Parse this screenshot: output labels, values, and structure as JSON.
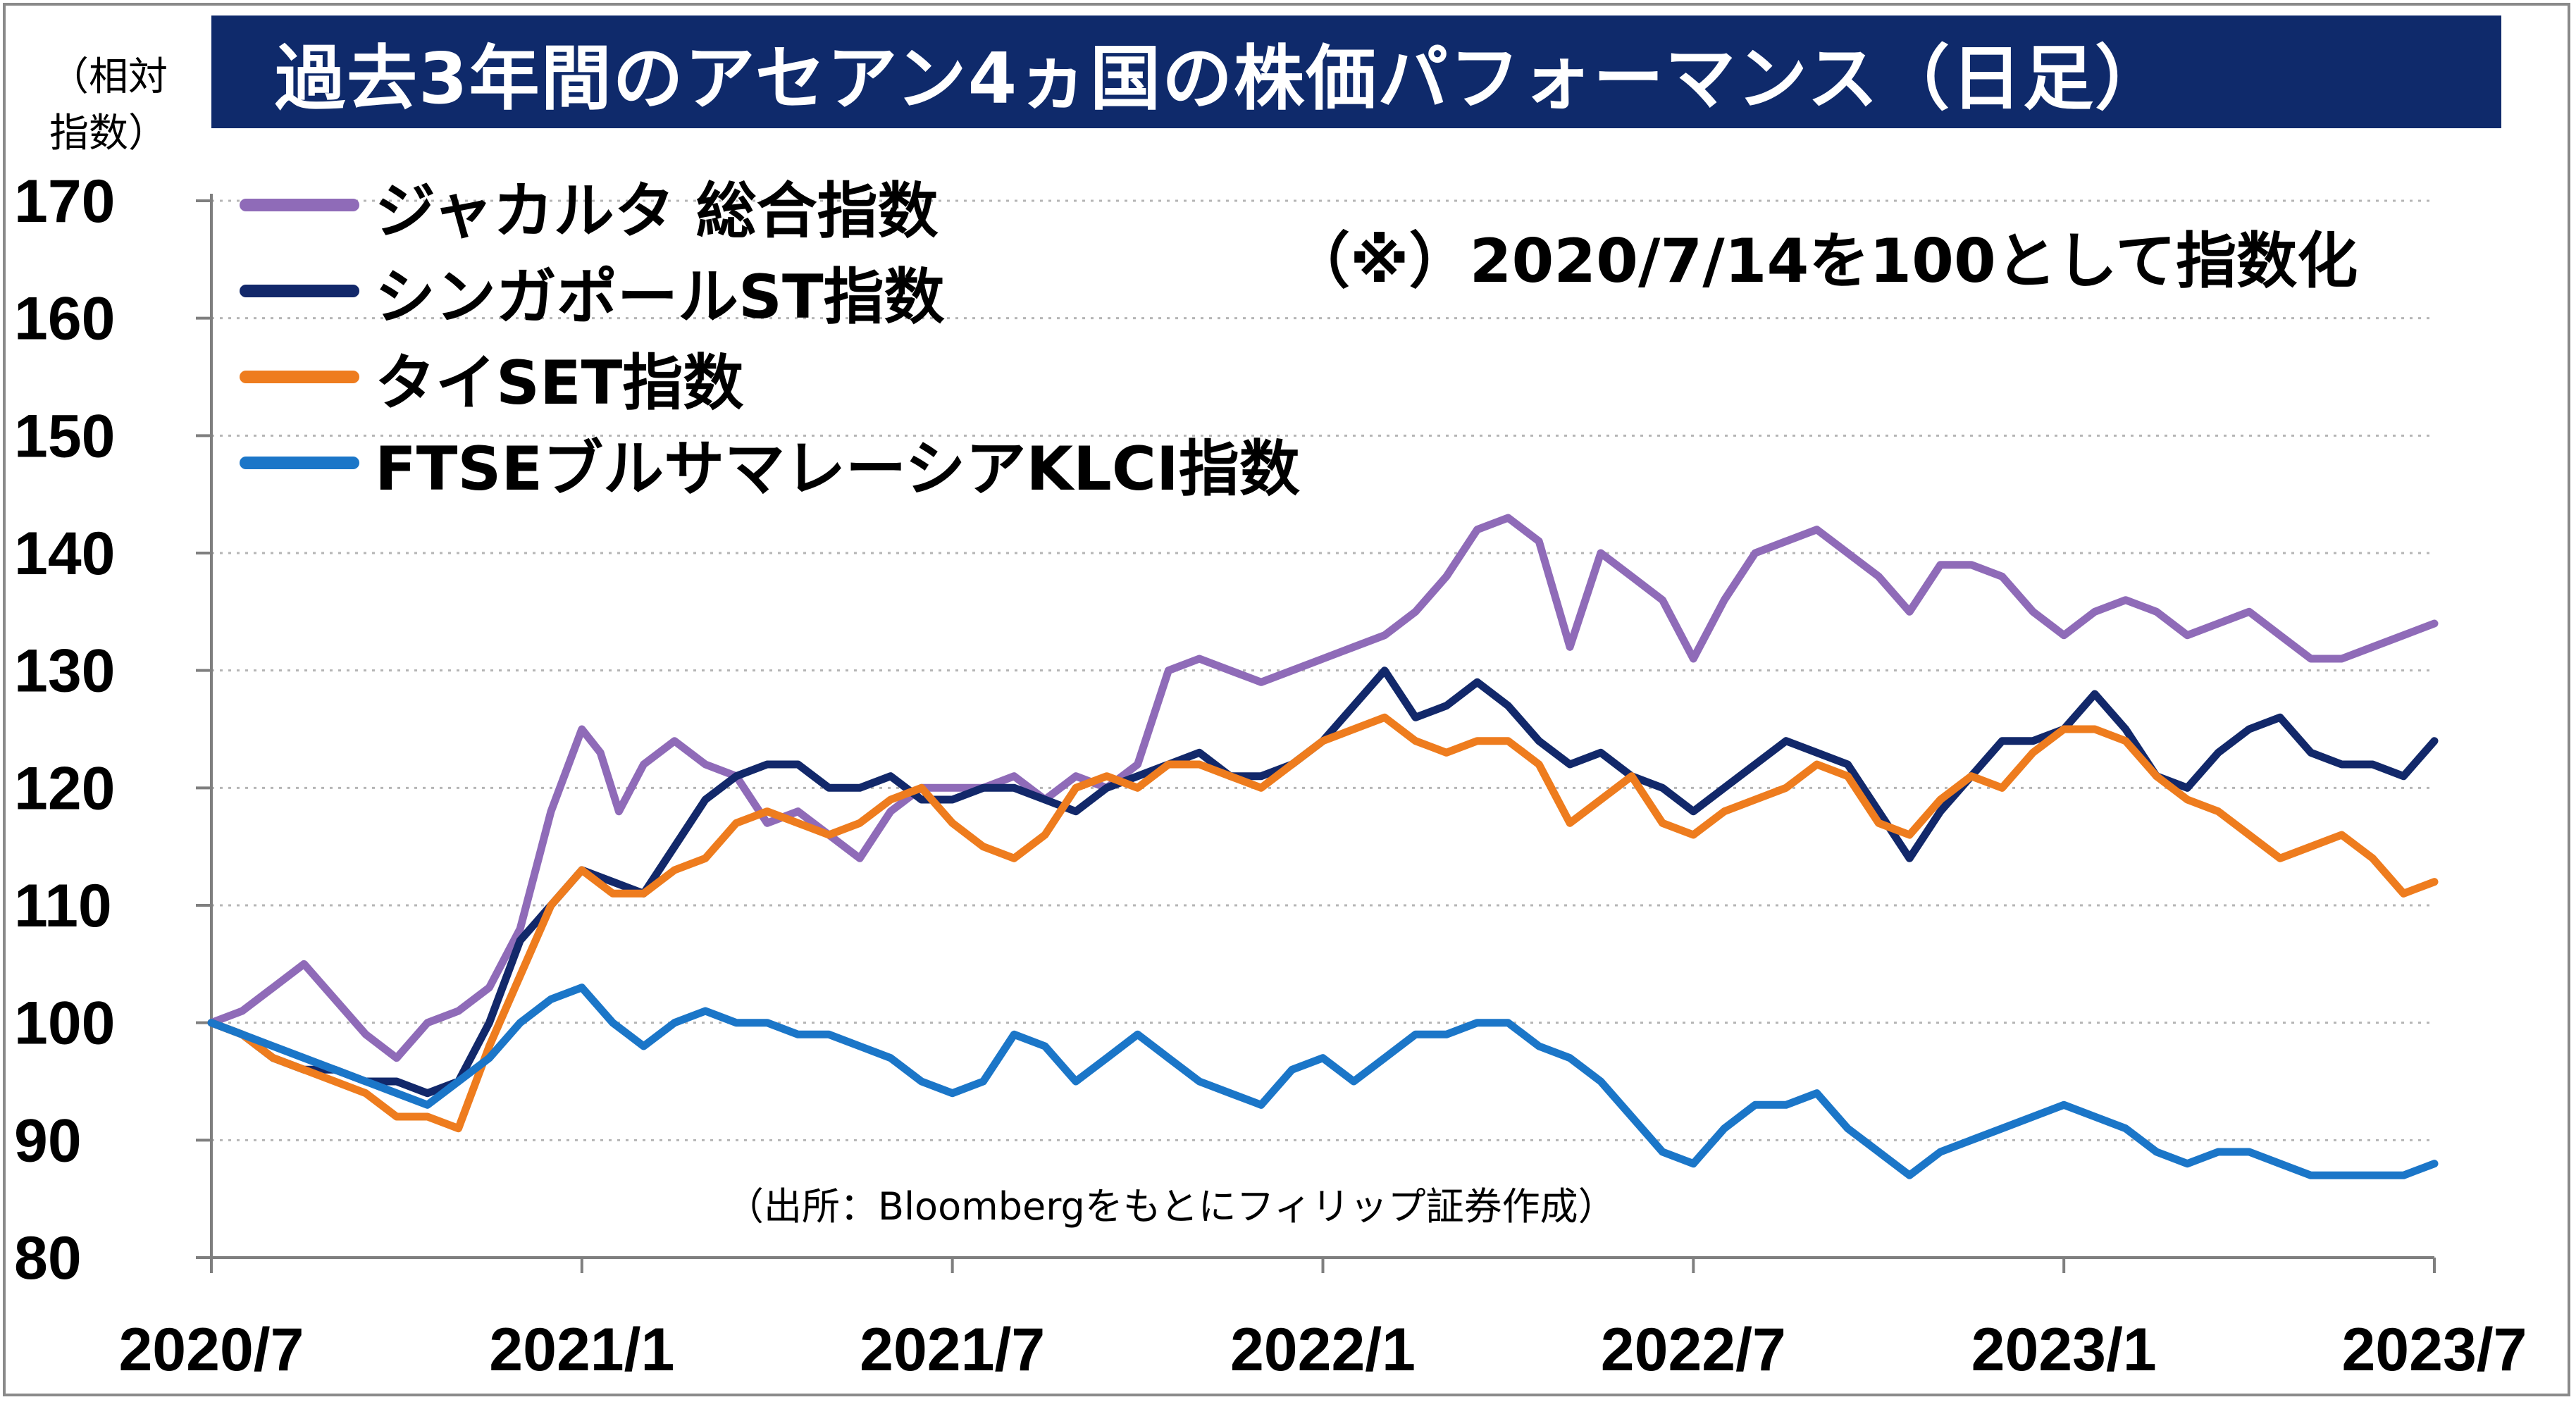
{
  "chart_data": {
    "type": "line",
    "title": "過去3年間のアセアン4ヵ国の株価パフォーマンス（日足）",
    "ylabel": "（相対\n指数）",
    "ylabel_lines": [
      "（相対",
      "指数）"
    ],
    "note": "（※）2020/7/14を100として指数化",
    "source": "（出所：Bloombergをもとにフィリップ証券作成）",
    "ylim": [
      80,
      170
    ],
    "yticks": [
      80,
      90,
      100,
      110,
      120,
      130,
      140,
      150,
      160,
      170
    ],
    "x_tick_labels": [
      "2020/7",
      "2021/1",
      "2021/7",
      "2022/1",
      "2022/7",
      "2023/1",
      "2023/7"
    ],
    "x_tick_months": [
      0,
      6,
      12,
      18,
      24,
      30,
      36
    ],
    "grid": true,
    "legend_position": "top-left",
    "x_unit": "months since 2020/7",
    "series": [
      {
        "name": "ジャカルタ 総合指数",
        "color": "#8f6bb8",
        "points": [
          [
            0,
            100
          ],
          [
            0.5,
            101
          ],
          [
            1,
            103
          ],
          [
            1.5,
            105
          ],
          [
            2,
            102
          ],
          [
            2.5,
            99
          ],
          [
            3,
            97
          ],
          [
            3.5,
            100
          ],
          [
            4,
            101
          ],
          [
            4.5,
            103
          ],
          [
            5,
            108
          ],
          [
            5.5,
            118
          ],
          [
            6,
            125
          ],
          [
            6.3,
            123
          ],
          [
            6.6,
            118
          ],
          [
            7,
            122
          ],
          [
            7.5,
            124
          ],
          [
            8,
            122
          ],
          [
            8.5,
            121
          ],
          [
            9,
            117
          ],
          [
            9.5,
            118
          ],
          [
            10,
            116
          ],
          [
            10.5,
            114
          ],
          [
            11,
            118
          ],
          [
            11.5,
            120
          ],
          [
            12,
            120
          ],
          [
            12.5,
            120
          ],
          [
            13,
            121
          ],
          [
            13.5,
            119
          ],
          [
            14,
            121
          ],
          [
            14.5,
            120
          ],
          [
            15,
            122
          ],
          [
            15.5,
            130
          ],
          [
            16,
            131
          ],
          [
            16.5,
            130
          ],
          [
            17,
            129
          ],
          [
            17.5,
            130
          ],
          [
            18,
            131
          ],
          [
            18.5,
            132
          ],
          [
            19,
            133
          ],
          [
            19.5,
            135
          ],
          [
            20,
            138
          ],
          [
            20.5,
            142
          ],
          [
            21,
            143
          ],
          [
            21.5,
            141
          ],
          [
            22,
            132
          ],
          [
            22.5,
            140
          ],
          [
            23,
            138
          ],
          [
            23.5,
            136
          ],
          [
            24,
            131
          ],
          [
            24.5,
            136
          ],
          [
            25,
            140
          ],
          [
            25.5,
            141
          ],
          [
            26,
            142
          ],
          [
            26.5,
            140
          ],
          [
            27,
            138
          ],
          [
            27.5,
            135
          ],
          [
            28,
            139
          ],
          [
            28.5,
            139
          ],
          [
            29,
            138
          ],
          [
            29.5,
            135
          ],
          [
            30,
            133
          ],
          [
            30.5,
            135
          ],
          [
            31,
            136
          ],
          [
            31.5,
            135
          ],
          [
            32,
            133
          ],
          [
            32.5,
            134
          ],
          [
            33,
            135
          ],
          [
            33.5,
            133
          ],
          [
            34,
            131
          ],
          [
            34.5,
            131
          ],
          [
            35,
            132
          ],
          [
            35.5,
            133
          ],
          [
            36,
            134
          ]
        ]
      },
      {
        "name": "シンガポールST指数",
        "color": "#12286a",
        "points": [
          [
            0,
            100
          ],
          [
            0.5,
            99
          ],
          [
            1,
            97
          ],
          [
            1.5,
            96
          ],
          [
            2,
            96
          ],
          [
            2.5,
            95
          ],
          [
            3,
            95
          ],
          [
            3.5,
            94
          ],
          [
            4,
            95
          ],
          [
            4.5,
            100
          ],
          [
            5,
            107
          ],
          [
            5.5,
            110
          ],
          [
            6,
            113
          ],
          [
            6.5,
            112
          ],
          [
            7,
            111
          ],
          [
            7.5,
            115
          ],
          [
            8,
            119
          ],
          [
            8.5,
            121
          ],
          [
            9,
            122
          ],
          [
            9.5,
            122
          ],
          [
            10,
            120
          ],
          [
            10.5,
            120
          ],
          [
            11,
            121
          ],
          [
            11.5,
            119
          ],
          [
            12,
            119
          ],
          [
            12.5,
            120
          ],
          [
            13,
            120
          ],
          [
            13.5,
            119
          ],
          [
            14,
            118
          ],
          [
            14.5,
            120
          ],
          [
            15,
            121
          ],
          [
            15.5,
            122
          ],
          [
            16,
            123
          ],
          [
            16.5,
            121
          ],
          [
            17,
            121
          ],
          [
            17.5,
            122
          ],
          [
            18,
            124
          ],
          [
            18.5,
            127
          ],
          [
            19,
            130
          ],
          [
            19.5,
            126
          ],
          [
            20,
            127
          ],
          [
            20.5,
            129
          ],
          [
            21,
            127
          ],
          [
            21.5,
            124
          ],
          [
            22,
            122
          ],
          [
            22.5,
            123
          ],
          [
            23,
            121
          ],
          [
            23.5,
            120
          ],
          [
            24,
            118
          ],
          [
            24.5,
            120
          ],
          [
            25,
            122
          ],
          [
            25.5,
            124
          ],
          [
            26,
            123
          ],
          [
            26.5,
            122
          ],
          [
            27,
            118
          ],
          [
            27.5,
            114
          ],
          [
            28,
            118
          ],
          [
            28.5,
            121
          ],
          [
            29,
            124
          ],
          [
            29.5,
            124
          ],
          [
            30,
            125
          ],
          [
            30.5,
            128
          ],
          [
            31,
            125
          ],
          [
            31.5,
            121
          ],
          [
            32,
            120
          ],
          [
            32.5,
            123
          ],
          [
            33,
            125
          ],
          [
            33.5,
            126
          ],
          [
            34,
            123
          ],
          [
            34.5,
            122
          ],
          [
            35,
            122
          ],
          [
            35.5,
            121
          ],
          [
            36,
            124
          ]
        ]
      },
      {
        "name": "タイSET指数",
        "color": "#ee7c1e",
        "points": [
          [
            0,
            100
          ],
          [
            0.5,
            99
          ],
          [
            1,
            97
          ],
          [
            1.5,
            96
          ],
          [
            2,
            95
          ],
          [
            2.5,
            94
          ],
          [
            3,
            92
          ],
          [
            3.5,
            92
          ],
          [
            4,
            91
          ],
          [
            4.5,
            98
          ],
          [
            5,
            104
          ],
          [
            5.5,
            110
          ],
          [
            6,
            113
          ],
          [
            6.5,
            111
          ],
          [
            7,
            111
          ],
          [
            7.5,
            113
          ],
          [
            8,
            114
          ],
          [
            8.5,
            117
          ],
          [
            9,
            118
          ],
          [
            9.5,
            117
          ],
          [
            10,
            116
          ],
          [
            10.5,
            117
          ],
          [
            11,
            119
          ],
          [
            11.5,
            120
          ],
          [
            12,
            117
          ],
          [
            12.5,
            115
          ],
          [
            13,
            114
          ],
          [
            13.5,
            116
          ],
          [
            14,
            120
          ],
          [
            14.5,
            121
          ],
          [
            15,
            120
          ],
          [
            15.5,
            122
          ],
          [
            16,
            122
          ],
          [
            16.5,
            121
          ],
          [
            17,
            120
          ],
          [
            17.5,
            122
          ],
          [
            18,
            124
          ],
          [
            18.5,
            125
          ],
          [
            19,
            126
          ],
          [
            19.5,
            124
          ],
          [
            20,
            123
          ],
          [
            20.5,
            124
          ],
          [
            21,
            124
          ],
          [
            21.5,
            122
          ],
          [
            22,
            117
          ],
          [
            22.5,
            119
          ],
          [
            23,
            121
          ],
          [
            23.5,
            117
          ],
          [
            24,
            116
          ],
          [
            24.5,
            118
          ],
          [
            25,
            119
          ],
          [
            25.5,
            120
          ],
          [
            26,
            122
          ],
          [
            26.5,
            121
          ],
          [
            27,
            117
          ],
          [
            27.5,
            116
          ],
          [
            28,
            119
          ],
          [
            28.5,
            121
          ],
          [
            29,
            120
          ],
          [
            29.5,
            123
          ],
          [
            30,
            125
          ],
          [
            30.5,
            125
          ],
          [
            31,
            124
          ],
          [
            31.5,
            121
          ],
          [
            32,
            119
          ],
          [
            32.5,
            118
          ],
          [
            33,
            116
          ],
          [
            33.5,
            114
          ],
          [
            34,
            115
          ],
          [
            34.5,
            116
          ],
          [
            35,
            114
          ],
          [
            35.5,
            111
          ],
          [
            36,
            112
          ]
        ]
      },
      {
        "name": "FTSEブルサマレーシアKLCI指数",
        "color": "#1b76c8",
        "points": [
          [
            0,
            100
          ],
          [
            0.5,
            99
          ],
          [
            1,
            98
          ],
          [
            1.5,
            97
          ],
          [
            2,
            96
          ],
          [
            2.5,
            95
          ],
          [
            3,
            94
          ],
          [
            3.5,
            93
          ],
          [
            4,
            95
          ],
          [
            4.5,
            97
          ],
          [
            5,
            100
          ],
          [
            5.5,
            102
          ],
          [
            6,
            103
          ],
          [
            6.5,
            100
          ],
          [
            7,
            98
          ],
          [
            7.5,
            100
          ],
          [
            8,
            101
          ],
          [
            8.5,
            100
          ],
          [
            9,
            100
          ],
          [
            9.5,
            99
          ],
          [
            10,
            99
          ],
          [
            10.5,
            98
          ],
          [
            11,
            97
          ],
          [
            11.5,
            95
          ],
          [
            12,
            94
          ],
          [
            12.5,
            95
          ],
          [
            13,
            99
          ],
          [
            13.5,
            98
          ],
          [
            14,
            95
          ],
          [
            14.5,
            97
          ],
          [
            15,
            99
          ],
          [
            15.5,
            97
          ],
          [
            16,
            95
          ],
          [
            16.5,
            94
          ],
          [
            17,
            93
          ],
          [
            17.5,
            96
          ],
          [
            18,
            97
          ],
          [
            18.5,
            95
          ],
          [
            19,
            97
          ],
          [
            19.5,
            99
          ],
          [
            20,
            99
          ],
          [
            20.5,
            100
          ],
          [
            21,
            100
          ],
          [
            21.5,
            98
          ],
          [
            22,
            97
          ],
          [
            22.5,
            95
          ],
          [
            23,
            92
          ],
          [
            23.5,
            89
          ],
          [
            24,
            88
          ],
          [
            24.5,
            91
          ],
          [
            25,
            93
          ],
          [
            25.5,
            93
          ],
          [
            26,
            94
          ],
          [
            26.5,
            91
          ],
          [
            27,
            89
          ],
          [
            27.5,
            87
          ],
          [
            28,
            89
          ],
          [
            28.5,
            90
          ],
          [
            29,
            91
          ],
          [
            29.5,
            92
          ],
          [
            30,
            93
          ],
          [
            30.5,
            92
          ],
          [
            31,
            91
          ],
          [
            31.5,
            89
          ],
          [
            32,
            88
          ],
          [
            32.5,
            89
          ],
          [
            33,
            89
          ],
          [
            33.5,
            88
          ],
          [
            34,
            87
          ],
          [
            34.5,
            87
          ],
          [
            35,
            87
          ],
          [
            35.5,
            87
          ],
          [
            36,
            88
          ]
        ]
      }
    ]
  }
}
